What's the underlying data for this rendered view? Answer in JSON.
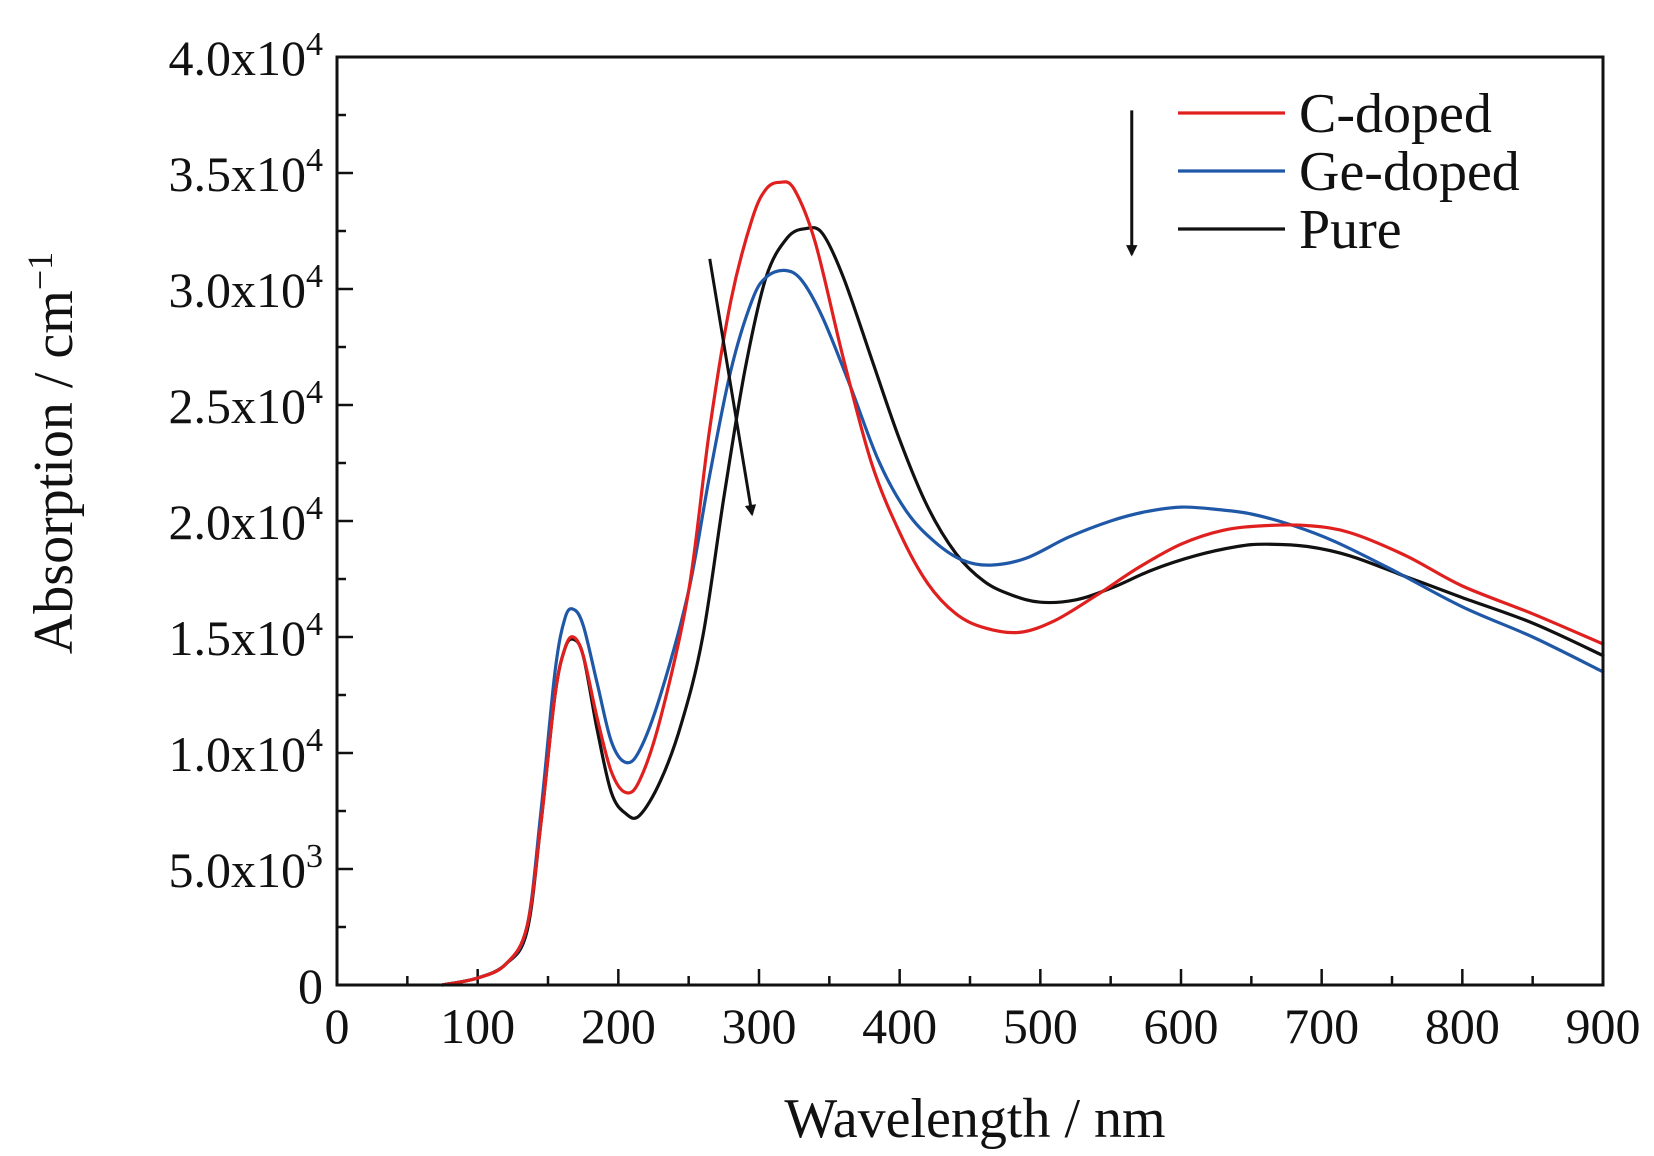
{
  "chart_data": {
    "type": "line",
    "xlabel": "Wavelength / nm",
    "ylabel": "Absorption / cm",
    "ylabel_superscript": "−1",
    "xlim": [
      0,
      900
    ],
    "ylim": [
      0,
      40000
    ],
    "xticks": [
      {
        "value": 0,
        "label": "0"
      },
      {
        "value": 100,
        "label": "100"
      },
      {
        "value": 200,
        "label": "200"
      },
      {
        "value": 300,
        "label": "300"
      },
      {
        "value": 400,
        "label": "400"
      },
      {
        "value": 500,
        "label": "500"
      },
      {
        "value": 600,
        "label": "600"
      },
      {
        "value": 700,
        "label": "700"
      },
      {
        "value": 800,
        "label": "800"
      },
      {
        "value": 900,
        "label": "900"
      }
    ],
    "yticks": [
      {
        "value": 0,
        "mantissa": "0",
        "exponent": ""
      },
      {
        "value": 5000,
        "mantissa": "5.0x10",
        "exponent": "3"
      },
      {
        "value": 10000,
        "mantissa": "1.0x10",
        "exponent": "4"
      },
      {
        "value": 15000,
        "mantissa": "1.5x10",
        "exponent": "4"
      },
      {
        "value": 20000,
        "mantissa": "2.0x10",
        "exponent": "4"
      },
      {
        "value": 25000,
        "mantissa": "2.5x10",
        "exponent": "4"
      },
      {
        "value": 30000,
        "mantissa": "3.0x10",
        "exponent": "4"
      },
      {
        "value": 35000,
        "mantissa": "3.5x10",
        "exponent": "4"
      },
      {
        "value": 40000,
        "mantissa": "4.0x10",
        "exponent": "4"
      }
    ],
    "grid": false,
    "legend_position": "top-right",
    "series": [
      {
        "name": "C-doped",
        "color": "#e0201e",
        "points": [
          [
            75,
            0
          ],
          [
            100,
            300
          ],
          [
            120,
            900
          ],
          [
            135,
            2500
          ],
          [
            145,
            7000
          ],
          [
            155,
            12500
          ],
          [
            162,
            14500
          ],
          [
            168,
            15000
          ],
          [
            175,
            14200
          ],
          [
            185,
            11500
          ],
          [
            195,
            9200
          ],
          [
            205,
            8300
          ],
          [
            215,
            8800
          ],
          [
            230,
            11500
          ],
          [
            250,
            17000
          ],
          [
            265,
            24000
          ],
          [
            280,
            29500
          ],
          [
            295,
            33000
          ],
          [
            305,
            34300
          ],
          [
            315,
            34600
          ],
          [
            325,
            34300
          ],
          [
            340,
            32000
          ],
          [
            360,
            27000
          ],
          [
            380,
            22500
          ],
          [
            400,
            19500
          ],
          [
            420,
            17300
          ],
          [
            440,
            16000
          ],
          [
            460,
            15400
          ],
          [
            485,
            15200
          ],
          [
            510,
            15700
          ],
          [
            540,
            16800
          ],
          [
            570,
            18000
          ],
          [
            600,
            19000
          ],
          [
            630,
            19600
          ],
          [
            660,
            19800
          ],
          [
            690,
            19800
          ],
          [
            720,
            19500
          ],
          [
            760,
            18500
          ],
          [
            800,
            17200
          ],
          [
            850,
            16000
          ],
          [
            900,
            14700
          ]
        ]
      },
      {
        "name": "Ge-doped",
        "color": "#2058a8",
        "points": [
          [
            75,
            0
          ],
          [
            100,
            300
          ],
          [
            120,
            900
          ],
          [
            135,
            2500
          ],
          [
            145,
            7500
          ],
          [
            155,
            13500
          ],
          [
            162,
            15800
          ],
          [
            168,
            16200
          ],
          [
            175,
            15500
          ],
          [
            185,
            13000
          ],
          [
            195,
            10500
          ],
          [
            205,
            9600
          ],
          [
            215,
            10100
          ],
          [
            230,
            12500
          ],
          [
            250,
            17000
          ],
          [
            265,
            22000
          ],
          [
            280,
            26500
          ],
          [
            295,
            29500
          ],
          [
            305,
            30500
          ],
          [
            318,
            30800
          ],
          [
            330,
            30400
          ],
          [
            345,
            28800
          ],
          [
            365,
            25800
          ],
          [
            385,
            22600
          ],
          [
            405,
            20400
          ],
          [
            425,
            19100
          ],
          [
            445,
            18300
          ],
          [
            465,
            18100
          ],
          [
            490,
            18400
          ],
          [
            520,
            19300
          ],
          [
            550,
            20000
          ],
          [
            575,
            20400
          ],
          [
            600,
            20600
          ],
          [
            625,
            20500
          ],
          [
            650,
            20300
          ],
          [
            680,
            19800
          ],
          [
            710,
            19100
          ],
          [
            750,
            17900
          ],
          [
            800,
            16300
          ],
          [
            850,
            15000
          ],
          [
            900,
            13500
          ]
        ]
      },
      {
        "name": "Pure",
        "color": "#111111",
        "points": [
          [
            75,
            0
          ],
          [
            100,
            300
          ],
          [
            120,
            900
          ],
          [
            135,
            2300
          ],
          [
            145,
            7000
          ],
          [
            155,
            12500
          ],
          [
            162,
            14500
          ],
          [
            168,
            14900
          ],
          [
            175,
            14200
          ],
          [
            185,
            11000
          ],
          [
            195,
            8300
          ],
          [
            205,
            7400
          ],
          [
            215,
            7300
          ],
          [
            230,
            8800
          ],
          [
            245,
            11300
          ],
          [
            260,
            15000
          ],
          [
            275,
            21000
          ],
          [
            290,
            26500
          ],
          [
            305,
            30500
          ],
          [
            320,
            32200
          ],
          [
            333,
            32600
          ],
          [
            345,
            32400
          ],
          [
            360,
            30500
          ],
          [
            380,
            27000
          ],
          [
            400,
            23500
          ],
          [
            420,
            20600
          ],
          [
            440,
            18600
          ],
          [
            460,
            17400
          ],
          [
            480,
            16800
          ],
          [
            500,
            16500
          ],
          [
            525,
            16600
          ],
          [
            550,
            17100
          ],
          [
            580,
            17900
          ],
          [
            610,
            18500
          ],
          [
            640,
            18900
          ],
          [
            660,
            19000
          ],
          [
            690,
            18900
          ],
          [
            720,
            18500
          ],
          [
            760,
            17600
          ],
          [
            800,
            16700
          ],
          [
            850,
            15600
          ],
          [
            900,
            14200
          ]
        ]
      }
    ],
    "annotations": [
      {
        "type": "arrow",
        "from": [
          265,
          31300
        ],
        "to": [
          295,
          20300
        ],
        "color": "#111111"
      },
      {
        "type": "arrow",
        "from": [
          565,
          37700
        ],
        "to": [
          565,
          31500
        ],
        "color": "#111111"
      }
    ]
  }
}
